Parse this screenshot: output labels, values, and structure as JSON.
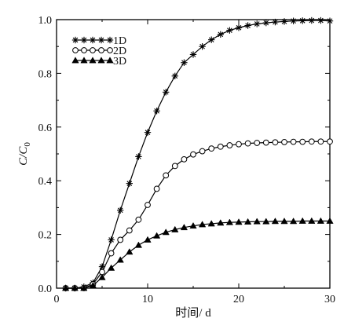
{
  "chart_data": {
    "type": "line",
    "xlabel": "时间/ d",
    "ylabel_main": "C/C",
    "ylabel_sub": "0",
    "xlim": [
      0,
      30
    ],
    "ylim": [
      0,
      1.0
    ],
    "xticks": [
      0,
      10,
      20,
      30
    ],
    "xtick_labels": [
      "0",
      "10",
      "20",
      "30"
    ],
    "yticks": [
      0,
      0.2,
      0.4,
      0.6,
      0.8,
      1.0
    ],
    "ytick_labels": [
      "0.0",
      "0.2",
      "0.4",
      "0.6",
      "0.8",
      "1.0"
    ],
    "legend_position": "top-left",
    "grid": false,
    "x": [
      1,
      2,
      3,
      4,
      5,
      6,
      7,
      8,
      9,
      10,
      11,
      12,
      13,
      14,
      15,
      16,
      17,
      18,
      19,
      20,
      21,
      22,
      23,
      24,
      25,
      26,
      27,
      28,
      29,
      30
    ],
    "series": [
      {
        "name": "1D",
        "marker": "asterisk",
        "values": [
          0.0,
          0.0,
          0.005,
          0.02,
          0.08,
          0.18,
          0.29,
          0.39,
          0.49,
          0.58,
          0.66,
          0.73,
          0.79,
          0.84,
          0.87,
          0.9,
          0.925,
          0.945,
          0.96,
          0.97,
          0.978,
          0.984,
          0.988,
          0.991,
          0.993,
          0.995,
          0.996,
          0.997,
          0.997,
          0.995
        ]
      },
      {
        "name": "2D",
        "marker": "circle",
        "values": [
          0.0,
          0.0,
          0.0,
          0.015,
          0.06,
          0.13,
          0.18,
          0.215,
          0.255,
          0.31,
          0.37,
          0.42,
          0.455,
          0.48,
          0.498,
          0.51,
          0.52,
          0.527,
          0.532,
          0.536,
          0.539,
          0.541,
          0.542,
          0.543,
          0.544,
          0.545,
          0.545,
          0.546,
          0.546,
          0.546
        ]
      },
      {
        "name": "3D",
        "marker": "triangle",
        "values": [
          0.0,
          0.0,
          0.0,
          0.01,
          0.04,
          0.075,
          0.105,
          0.135,
          0.16,
          0.18,
          0.195,
          0.208,
          0.218,
          0.226,
          0.232,
          0.237,
          0.24,
          0.243,
          0.245,
          0.246,
          0.247,
          0.248,
          0.248,
          0.249,
          0.249,
          0.249,
          0.25,
          0.25,
          0.25,
          0.25
        ]
      }
    ]
  }
}
